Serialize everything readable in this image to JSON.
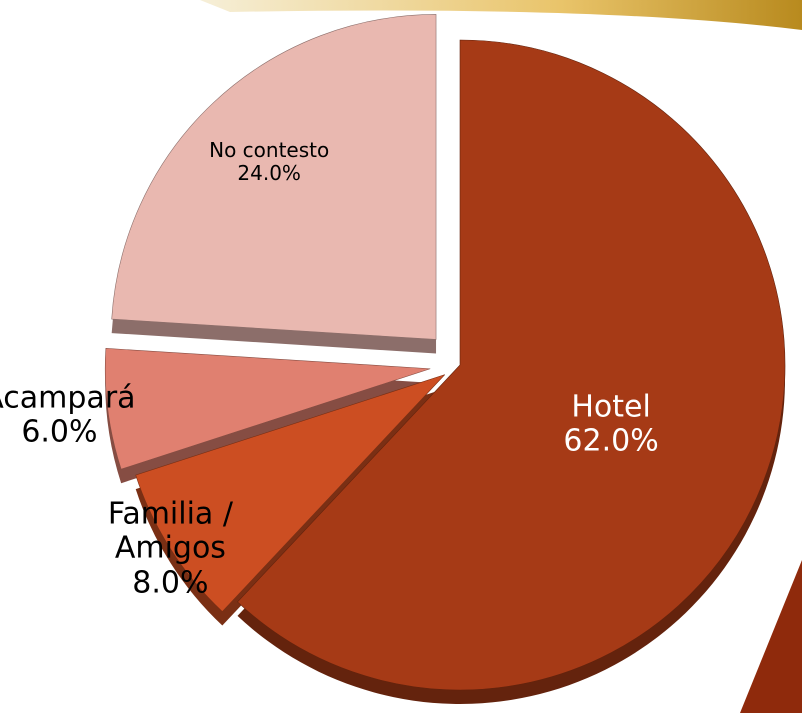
{
  "chart_data": {
    "type": "pie",
    "categories": [
      "Hotel",
      "Familia / Amigos",
      "Acampará",
      "No contesto"
    ],
    "values": [
      62,
      8,
      6,
      24
    ],
    "value_labels": [
      "62.0%",
      "8.0%",
      "6.0%",
      "24.0%"
    ],
    "colors": [
      "#a63a16",
      "#cc4e22",
      "#e08070",
      "#e9b8b0"
    ]
  }
}
